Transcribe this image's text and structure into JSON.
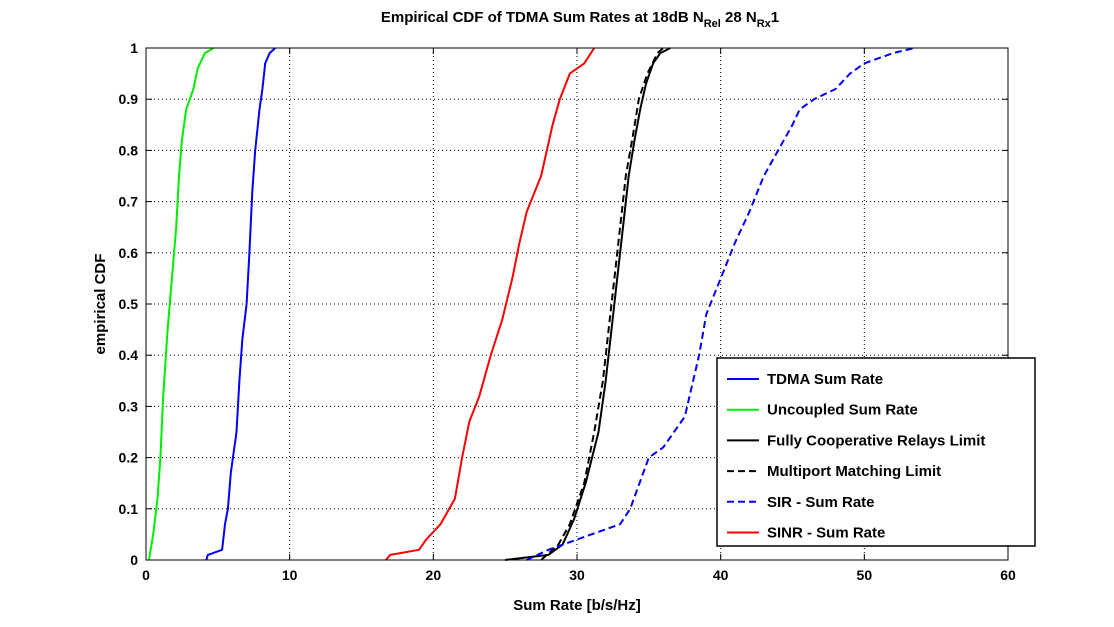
{
  "chart_data": {
    "type": "line",
    "title": {
      "main": "Empirical CDF of TDMA Sum Rates at 18dB N",
      "sub1": "Rel",
      "mid": " 28 N",
      "sub2": "Rx",
      "end": "1"
    },
    "xlabel": "Sum Rate [b/s/Hz]",
    "ylabel": "empirical CDF",
    "xlim": [
      0,
      60
    ],
    "ylim": [
      0,
      1
    ],
    "xticks": [
      0,
      10,
      20,
      30,
      40,
      50,
      60
    ],
    "yticks": [
      0,
      0.1,
      0.2,
      0.3,
      0.4,
      0.5,
      0.6,
      0.7,
      0.8,
      0.9,
      1
    ],
    "xtick_labels": [
      "0",
      "10",
      "20",
      "30",
      "40",
      "50",
      "60"
    ],
    "ytick_labels": [
      "0",
      "0.1",
      "0.2",
      "0.3",
      "0.4",
      "0.5",
      "0.6",
      "0.7",
      "0.8",
      "0.9",
      "1"
    ],
    "grid": true,
    "legend_position": "bottom-right",
    "series": [
      {
        "name": "TDMA Sum Rate",
        "color": "#0000ff",
        "dash": "solid",
        "points": [
          [
            4.2,
            0
          ],
          [
            4.3,
            0.01
          ],
          [
            5.3,
            0.02
          ],
          [
            5.5,
            0.07
          ],
          [
            5.7,
            0.1
          ],
          [
            5.9,
            0.17
          ],
          [
            6.3,
            0.25
          ],
          [
            6.5,
            0.35
          ],
          [
            6.7,
            0.43
          ],
          [
            7.0,
            0.5
          ],
          [
            7.2,
            0.6
          ],
          [
            7.4,
            0.72
          ],
          [
            7.6,
            0.8
          ],
          [
            7.9,
            0.88
          ],
          [
            8.1,
            0.92
          ],
          [
            8.3,
            0.97
          ],
          [
            8.6,
            0.99
          ],
          [
            9.0,
            1.0
          ]
        ]
      },
      {
        "name": "Uncoupled Sum Rate",
        "color": "#00ee00",
        "dash": "solid",
        "points": [
          [
            0.2,
            0
          ],
          [
            0.5,
            0.05
          ],
          [
            0.8,
            0.12
          ],
          [
            1.0,
            0.2
          ],
          [
            1.2,
            0.32
          ],
          [
            1.5,
            0.45
          ],
          [
            1.8,
            0.55
          ],
          [
            2.1,
            0.65
          ],
          [
            2.3,
            0.75
          ],
          [
            2.5,
            0.82
          ],
          [
            2.8,
            0.88
          ],
          [
            3.3,
            0.92
          ],
          [
            3.6,
            0.96
          ],
          [
            4.1,
            0.99
          ],
          [
            4.7,
            1.0
          ]
        ]
      },
      {
        "name": "Fully Cooperative Relays Limit",
        "color": "#000000",
        "dash": "solid",
        "points": [
          [
            25,
            0
          ],
          [
            28,
            0.01
          ],
          [
            29,
            0.03
          ],
          [
            29.8,
            0.08
          ],
          [
            30.6,
            0.15
          ],
          [
            31.5,
            0.25
          ],
          [
            32.0,
            0.35
          ],
          [
            32.4,
            0.45
          ],
          [
            32.8,
            0.55
          ],
          [
            33.2,
            0.65
          ],
          [
            33.6,
            0.75
          ],
          [
            34.0,
            0.82
          ],
          [
            34.4,
            0.88
          ],
          [
            34.8,
            0.93
          ],
          [
            35.3,
            0.97
          ],
          [
            35.8,
            0.99
          ],
          [
            36.5,
            1.0
          ]
        ]
      },
      {
        "name": "Multiport Matching Limit",
        "color": "#000000",
        "dash": "dashed",
        "points": [
          [
            27.5,
            0
          ],
          [
            28.7,
            0.03
          ],
          [
            29.5,
            0.07
          ],
          [
            30.5,
            0.15
          ],
          [
            31.2,
            0.25
          ],
          [
            31.8,
            0.35
          ],
          [
            32.2,
            0.45
          ],
          [
            32.6,
            0.55
          ],
          [
            33.0,
            0.65
          ],
          [
            33.4,
            0.75
          ],
          [
            33.9,
            0.83
          ],
          [
            34.3,
            0.9
          ],
          [
            34.9,
            0.95
          ],
          [
            35.6,
            0.99
          ],
          [
            36.0,
            1.0
          ]
        ]
      },
      {
        "name": "SIR - Sum Rate",
        "color": "#0000ff",
        "dash": "dashed",
        "points": [
          [
            26.5,
            0
          ],
          [
            28,
            0.02
          ],
          [
            30,
            0.04
          ],
          [
            33,
            0.07
          ],
          [
            33.7,
            0.1
          ],
          [
            35,
            0.2
          ],
          [
            36,
            0.22
          ],
          [
            37.5,
            0.28
          ],
          [
            38.5,
            0.4
          ],
          [
            39,
            0.48
          ],
          [
            40,
            0.55
          ],
          [
            41,
            0.62
          ],
          [
            42,
            0.68
          ],
          [
            43,
            0.75
          ],
          [
            44,
            0.8
          ],
          [
            45,
            0.85
          ],
          [
            45.5,
            0.88
          ],
          [
            46.5,
            0.9
          ],
          [
            48,
            0.92
          ],
          [
            49,
            0.95
          ],
          [
            50,
            0.97
          ],
          [
            52,
            0.99
          ],
          [
            53.5,
            1.0
          ]
        ]
      },
      {
        "name": "SINR - Sum Rate",
        "color": "#ff0000",
        "dash": "solid",
        "points": [
          [
            16.7,
            0
          ],
          [
            17,
            0.01
          ],
          [
            19,
            0.02
          ],
          [
            19.5,
            0.04
          ],
          [
            20.5,
            0.07
          ],
          [
            21.5,
            0.12
          ],
          [
            22,
            0.2
          ],
          [
            22.5,
            0.27
          ],
          [
            23.2,
            0.32
          ],
          [
            24,
            0.4
          ],
          [
            24.8,
            0.47
          ],
          [
            25.5,
            0.55
          ],
          [
            26,
            0.62
          ],
          [
            26.5,
            0.68
          ],
          [
            27.5,
            0.75
          ],
          [
            28.3,
            0.85
          ],
          [
            28.8,
            0.9
          ],
          [
            29.5,
            0.95
          ],
          [
            30.5,
            0.97
          ],
          [
            31.2,
            1.0
          ]
        ]
      }
    ]
  }
}
